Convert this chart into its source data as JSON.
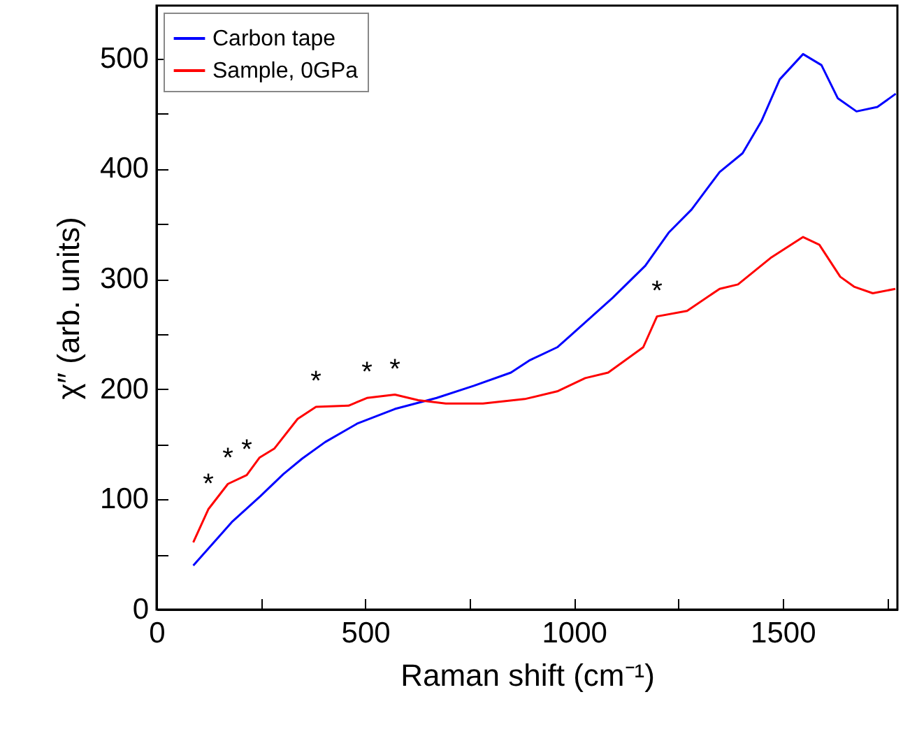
{
  "chart_data": {
    "type": "line",
    "xlabel": "Raman shift (cm⁻¹)",
    "ylabel": "χ″ (arb. units)",
    "xlim": [
      0,
      1775
    ],
    "ylim": [
      0,
      548
    ],
    "xticks": [
      0,
      {
        "value": 250,
        "label": null
      },
      500,
      {
        "value": 750,
        "label": null
      },
      1000,
      {
        "value": 1250,
        "label": null
      },
      1500,
      {
        "value": 1750,
        "label": null
      }
    ],
    "yticks": [
      0,
      {
        "value": 50,
        "label": null
      },
      100,
      {
        "value": 150,
        "label": null
      },
      200,
      {
        "value": 250,
        "label": null
      },
      300,
      {
        "value": 350,
        "label": null
      },
      400,
      {
        "value": 450,
        "label": null
      },
      500
    ],
    "grid": false,
    "legend": "top left",
    "line_style": "solid",
    "marker": "none",
    "series": [
      {
        "name": "Carbon tape",
        "color": "#0000ff",
        "x": [
          88,
          182,
          249,
          304,
          349,
          404,
          482,
          571,
          671,
          760,
          849,
          893,
          960,
          993,
          1093,
          1171,
          1227,
          1282,
          1349,
          1404,
          1449,
          1493,
          1549,
          1593,
          1632,
          1677,
          1727,
          1771
        ],
        "values": [
          40,
          80,
          103,
          123,
          137,
          152,
          169,
          182,
          192,
          203,
          215,
          226,
          238,
          249,
          283,
          312,
          342,
          363,
          397,
          414,
          443,
          481,
          504,
          494,
          464,
          452,
          456,
          468
        ]
      },
      {
        "name": "Sample, 0GPa",
        "color": "#ff0000",
        "x": [
          88,
          124,
          171,
          216,
          247,
          282,
          338,
          382,
          460,
          504,
          571,
          627,
          693,
          782,
          882,
          960,
          1027,
          1082,
          1166,
          1199,
          1271,
          1349,
          1393,
          1471,
          1549,
          1588,
          1638,
          1671,
          1716,
          1770
        ],
        "values": [
          61,
          91,
          114,
          122,
          138,
          146,
          173,
          184,
          185,
          192,
          195,
          190,
          187,
          187,
          191,
          198,
          210,
          215,
          238,
          266,
          271,
          291,
          295,
          319,
          338,
          331,
          302,
          293,
          287,
          291
        ]
      }
    ],
    "annotations": [
      {
        "text": "*",
        "x": 124,
        "y": 91
      },
      {
        "text": "*",
        "x": 171,
        "y": 114
      },
      {
        "text": "*",
        "x": 216,
        "y": 122
      },
      {
        "text": "*",
        "x": 382,
        "y": 184
      },
      {
        "text": "*",
        "x": 504,
        "y": 192
      },
      {
        "text": "*",
        "x": 571,
        "y": 195
      },
      {
        "text": "*",
        "x": 1199,
        "y": 266
      }
    ]
  }
}
